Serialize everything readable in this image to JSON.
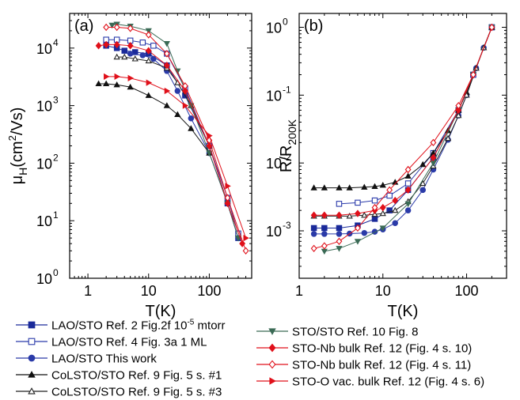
{
  "chart_data": [
    {
      "type": "scatter",
      "panel_label": "(a)",
      "xlabel": "T(K)",
      "ylabel_main": "μ",
      "ylabel_sub": "H",
      "ylabel_rest": "(cm",
      "ylabel_sup": "2",
      "ylabel_end": "/Vs)",
      "xscale": "log",
      "yscale": "log",
      "xlim": [
        0.5,
        500
      ],
      "ylim": [
        1,
        40000
      ],
      "x_ticks": [
        {
          "v": 1,
          "label": "1"
        },
        {
          "v": 10,
          "label": "10"
        },
        {
          "v": 100,
          "label": "100"
        }
      ],
      "y_ticks": [
        {
          "v": 1,
          "base": "10",
          "exp": "0"
        },
        {
          "v": 10,
          "base": "10",
          "exp": "1"
        },
        {
          "v": 100,
          "base": "10",
          "exp": "2"
        },
        {
          "v": 1000,
          "base": "10",
          "exp": "3"
        },
        {
          "v": 10000,
          "base": "10",
          "exp": "4"
        }
      ],
      "series": [
        {
          "key": "s1",
          "x": [
            2,
            3,
            4,
            6,
            10,
            20,
            40,
            100,
            200,
            300
          ],
          "y": [
            11000,
            10000,
            9000,
            8500,
            8000,
            5000,
            1500,
            200,
            20,
            5
          ]
        },
        {
          "key": "s2",
          "x": [
            2,
            3,
            5,
            8,
            12,
            20,
            40,
            100,
            200,
            300
          ],
          "y": [
            14000,
            14000,
            13500,
            12500,
            11000,
            8000,
            2000,
            200,
            25,
            6
          ]
        },
        {
          "key": "s3",
          "x": [
            5,
            8,
            12,
            20,
            30,
            50,
            100,
            200,
            300
          ],
          "y": [
            8000,
            7500,
            6500,
            4000,
            1800,
            600,
            150,
            20,
            5
          ]
        },
        {
          "key": "s4",
          "x": [
            1.5,
            2,
            3,
            5,
            10,
            20,
            30,
            50,
            100
          ],
          "y": [
            2400,
            2400,
            2300,
            2100,
            1500,
            1000,
            700,
            400,
            150
          ]
        },
        {
          "key": "s5",
          "x": [
            3,
            4,
            6,
            10,
            20,
            30,
            50,
            100
          ],
          "y": [
            7000,
            7000,
            6500,
            6000,
            4500,
            2500,
            1000,
            200
          ]
        },
        {
          "key": "s6",
          "x": [
            2.5,
            3,
            5,
            10,
            20,
            30,
            50,
            100,
            200,
            300
          ],
          "y": [
            25000,
            26000,
            24000,
            20000,
            12000,
            4000,
            1000,
            150,
            20,
            5
          ]
        },
        {
          "key": "s7",
          "x": [
            1.5,
            2,
            3,
            5,
            10,
            20,
            40,
            100,
            200,
            350
          ],
          "y": [
            11000,
            11500,
            11500,
            11000,
            9000,
            5000,
            1800,
            200,
            20,
            4
          ]
        },
        {
          "key": "s8",
          "x": [
            2,
            3,
            5,
            10,
            20,
            40,
            100,
            200,
            400
          ],
          "y": [
            23000,
            23000,
            22000,
            17000,
            8000,
            2200,
            250,
            25,
            3
          ]
        },
        {
          "key": "s9",
          "x": [
            2,
            3,
            5,
            10,
            20,
            40,
            100,
            200,
            400
          ],
          "y": [
            3200,
            3200,
            3000,
            2500,
            1800,
            1000,
            300,
            40,
            5
          ]
        }
      ]
    },
    {
      "type": "scatter",
      "panel_label": "(b)",
      "xlabel": "T(K)",
      "ylabel_main": "R/R",
      "ylabel_sub": "200K",
      "xscale": "log",
      "yscale": "log",
      "xlim": [
        1,
        300
      ],
      "ylim": [
        0.0002,
        1.6
      ],
      "x_ticks": [
        {
          "v": 1,
          "label": "1"
        },
        {
          "v": 10,
          "label": "10"
        },
        {
          "v": 100,
          "label": "100"
        }
      ],
      "y_ticks": [
        {
          "v": 0.001,
          "base": "10",
          "exp": "-3"
        },
        {
          "v": 0.01,
          "base": "10",
          "exp": "-2"
        },
        {
          "v": 0.1,
          "base": "10",
          "exp": "-1"
        },
        {
          "v": 1,
          "base": "10",
          "exp": "0"
        }
      ],
      "series": [
        {
          "key": "s1",
          "x": [
            1.5,
            2,
            3,
            5,
            8,
            12,
            20,
            40,
            80,
            120,
            200
          ],
          "y": [
            0.0011,
            0.0011,
            0.0011,
            0.0012,
            0.0015,
            0.002,
            0.004,
            0.012,
            0.06,
            0.2,
            1
          ]
        },
        {
          "key": "s2",
          "x": [
            3,
            5,
            8,
            12,
            20,
            40,
            80,
            120,
            200
          ],
          "y": [
            0.0025,
            0.0026,
            0.0028,
            0.0033,
            0.005,
            0.014,
            0.06,
            0.2,
            1
          ]
        },
        {
          "key": "s3",
          "x": [
            1.5,
            2,
            3,
            4,
            6,
            8,
            10,
            14,
            20,
            30,
            40,
            60,
            80,
            100,
            130,
            160,
            200
          ],
          "y": [
            0.0009,
            0.0009,
            0.0009,
            0.00091,
            0.00093,
            0.00097,
            0.00105,
            0.0013,
            0.002,
            0.004,
            0.008,
            0.022,
            0.05,
            0.1,
            0.25,
            0.5,
            1
          ]
        },
        {
          "key": "s4",
          "x": [
            1.5,
            2,
            3,
            4,
            6,
            8,
            10,
            14,
            20,
            30,
            40,
            60,
            80,
            100,
            130,
            160,
            200
          ],
          "y": [
            0.0043,
            0.0043,
            0.0043,
            0.0043,
            0.0044,
            0.0045,
            0.0047,
            0.0052,
            0.0064,
            0.0095,
            0.014,
            0.03,
            0.06,
            0.11,
            0.25,
            0.5,
            1
          ]
        },
        {
          "key": "s5",
          "x": [
            1.5,
            2,
            3,
            4,
            6,
            8,
            10,
            14,
            20,
            30,
            40,
            60,
            80,
            100,
            130,
            160,
            200
          ],
          "y": [
            0.00165,
            0.00165,
            0.00165,
            0.00165,
            0.0017,
            0.00175,
            0.0018,
            0.002,
            0.0027,
            0.005,
            0.009,
            0.023,
            0.05,
            0.1,
            0.25,
            0.5,
            1
          ]
        },
        {
          "key": "s6",
          "x": [
            2,
            3,
            5,
            10,
            20,
            40,
            80,
            120,
            200
          ],
          "y": [
            0.0005,
            0.00055,
            0.0007,
            0.0011,
            0.0025,
            0.01,
            0.06,
            0.2,
            1
          ]
        },
        {
          "key": "s7",
          "x": [
            1.5,
            2,
            3,
            5,
            8,
            10,
            14,
            20,
            40,
            80,
            120,
            200
          ],
          "y": [
            0.0017,
            0.0017,
            0.0017,
            0.0018,
            0.002,
            0.0022,
            0.0028,
            0.004,
            0.012,
            0.06,
            0.2,
            1
          ]
        },
        {
          "key": "s8",
          "x": [
            1.5,
            2,
            3,
            5,
            8,
            12,
            20,
            40,
            80,
            120,
            200
          ],
          "y": [
            0.00055,
            0.0006,
            0.0007,
            0.0011,
            0.0022,
            0.004,
            0.008,
            0.02,
            0.07,
            0.2,
            1
          ]
        }
      ]
    }
  ],
  "legend": {
    "left": [
      {
        "key": "s1",
        "label": "LAO/STO Ref. 2 Fig.2f 10",
        "sup": "-5",
        "suffix": " mtorr"
      },
      {
        "key": "s2",
        "label": "LAO/STO Ref. 4 Fig. 3a 1 ML"
      },
      {
        "key": "s3",
        "label": "LAO/STO This work"
      },
      {
        "key": "s4",
        "label": "CoLSTO/STO Ref. 9 Fig. 5 s. #1"
      },
      {
        "key": "s5",
        "label": "CoLSTO/STO Ref. 9 Fig. 5 s. #3"
      }
    ],
    "right": [
      {
        "key": "s6",
        "label": "STO/STO Ref. 10 Fig. 8"
      },
      {
        "key": "s7",
        "label": "STO-Nb bulk Ref. 12 (Fig. 4 s. 10)"
      },
      {
        "key": "s8",
        "label": "STO-Nb bulk Ref. 12 (Fig. 4 s. 11)"
      },
      {
        "key": "s9",
        "label": "STO-O vac. bulk Ref. 12 (Fig. 4 s. 6)"
      }
    ]
  },
  "series_style": {
    "s1": {
      "color": "#1a2a9a",
      "marker": "square",
      "fill": "solid"
    },
    "s2": {
      "color": "#2a3aaa",
      "marker": "square",
      "fill": "open"
    },
    "s3": {
      "color": "#2a3aa8",
      "marker": "circle",
      "fill": "solid"
    },
    "s4": {
      "color": "#111111",
      "marker": "triangle-up",
      "fill": "solid"
    },
    "s5": {
      "color": "#222222",
      "marker": "triangle-up",
      "fill": "open"
    },
    "s6": {
      "color": "#3a6a55",
      "marker": "triangle-down",
      "fill": "solid"
    },
    "s7": {
      "color": "#e0101a",
      "marker": "diamond",
      "fill": "solid"
    },
    "s8": {
      "color": "#e0101a",
      "marker": "diamond",
      "fill": "open"
    },
    "s9": {
      "color": "#e0101a",
      "marker": "triangle-right",
      "fill": "solid"
    }
  }
}
